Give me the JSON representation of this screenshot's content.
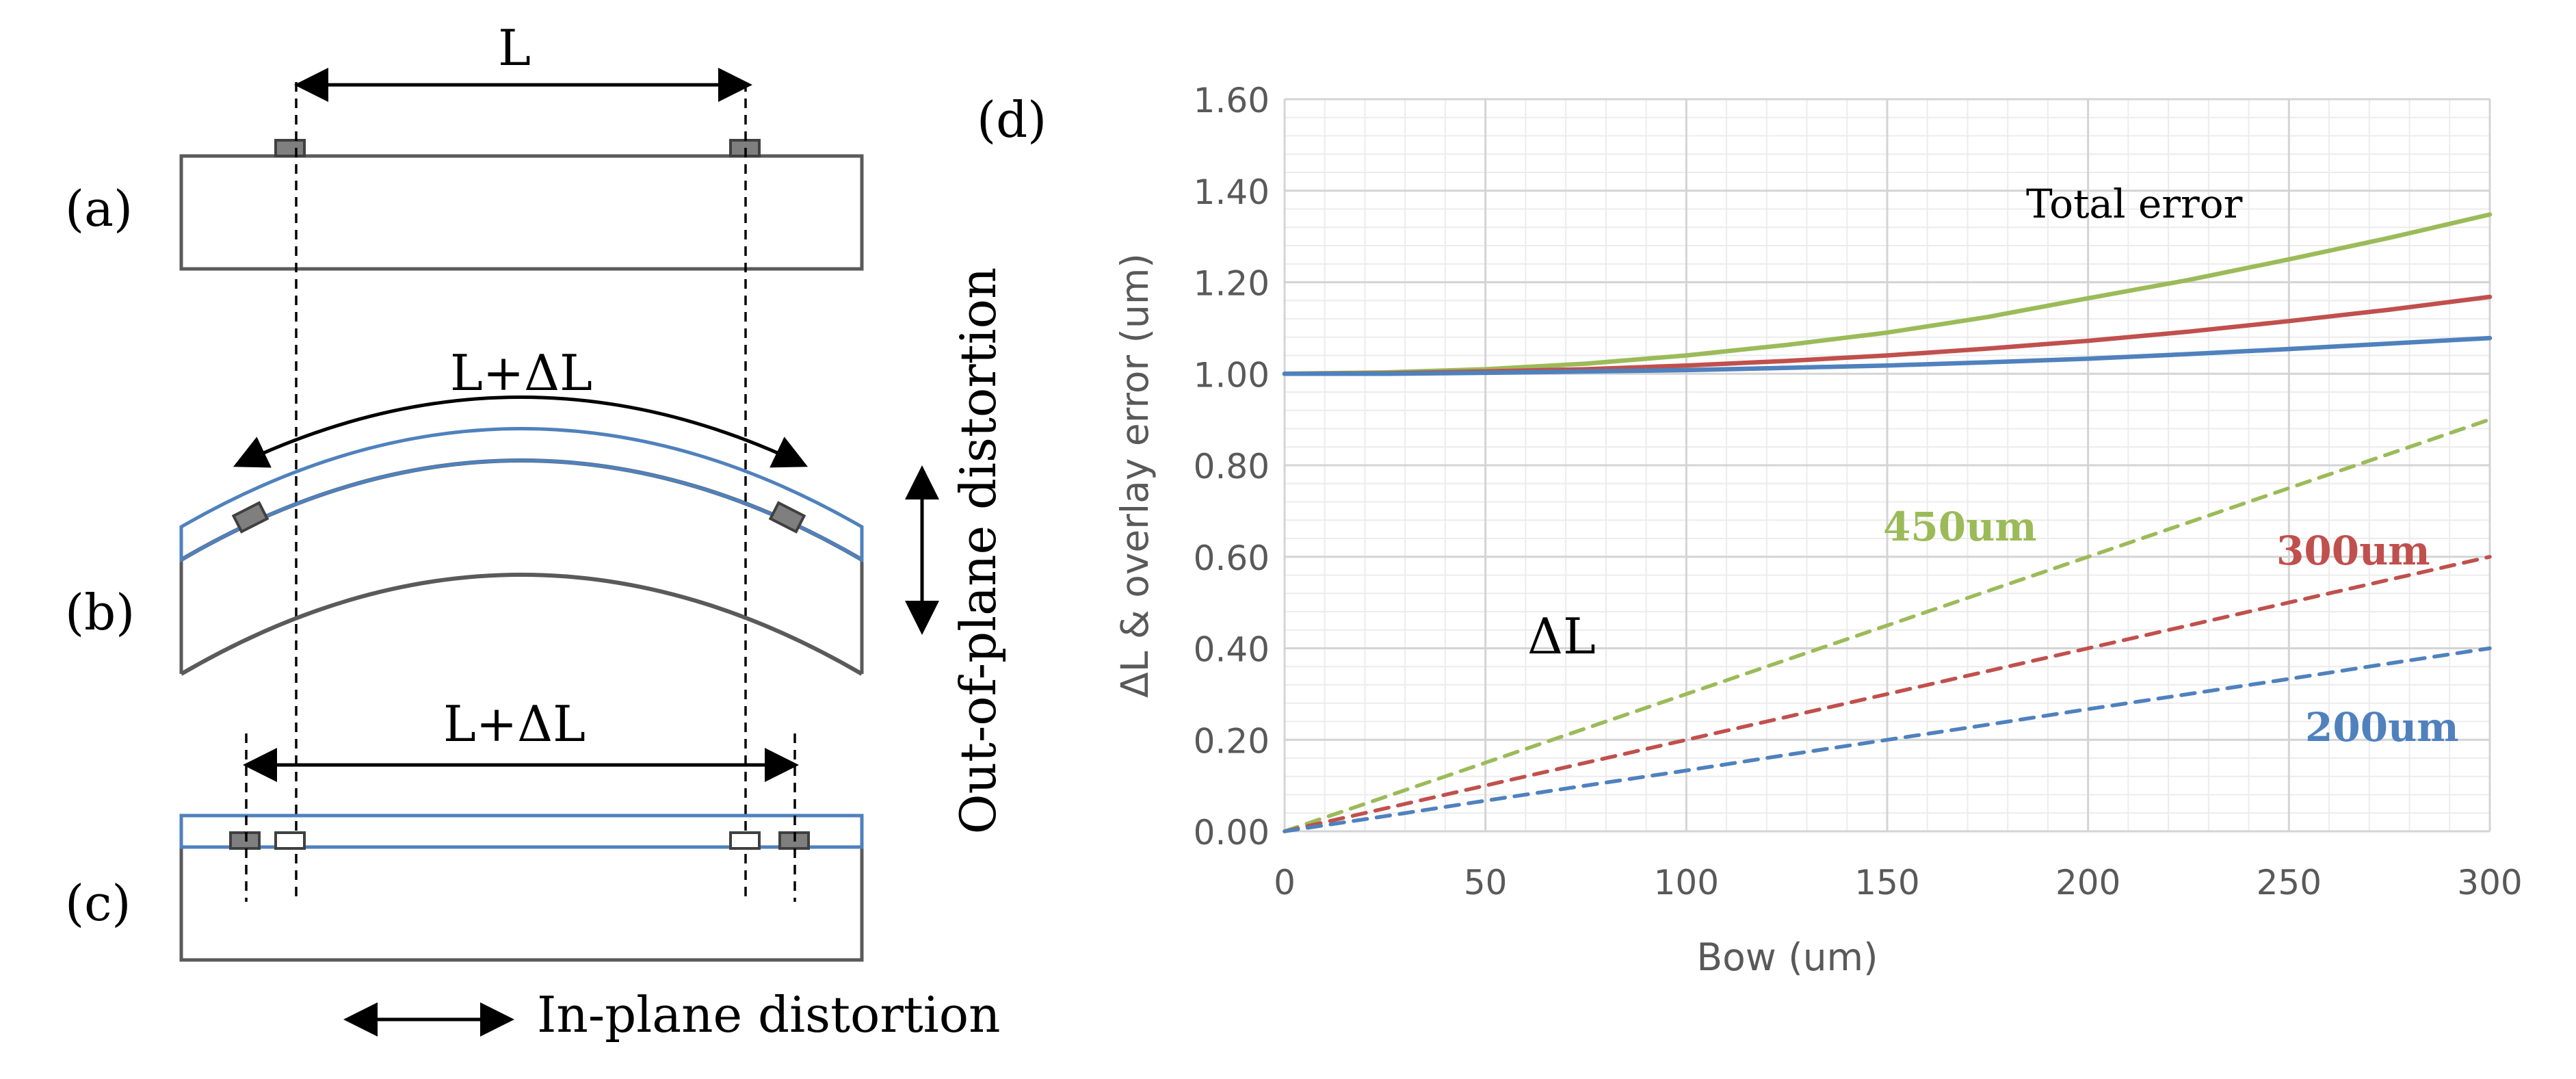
{
  "diagram": {
    "labels": {
      "panel_a": "(a)",
      "panel_b": "(b)",
      "panel_c": "(c)",
      "length_top": "L",
      "length_bent": "L+ΔL",
      "length_flat": "L+ΔL",
      "out_of_plane": "Out-of-plane distortion",
      "in_plane": "In-plane distortion"
    },
    "colors": {
      "outline": "#5a5a5a",
      "film": "#4f81bd",
      "marker_fill": "#7f7f7f"
    }
  },
  "chart_data": {
    "type": "line",
    "panel_label": "(d)",
    "xlabel": "Bow (um)",
    "ylabel": "ΔL & overlay error (um)",
    "xlim": [
      0,
      300
    ],
    "ylim": [
      0,
      1.6
    ],
    "x_ticks": [
      "0",
      "50",
      "100",
      "150",
      "200",
      "250",
      "300"
    ],
    "y_ticks": [
      "0.00",
      "0.20",
      "0.40",
      "0.60",
      "0.80",
      "1.00",
      "1.20",
      "1.40",
      "1.60"
    ],
    "grid": true,
    "annotations": {
      "total_error": "Total error",
      "delta_l": "ΔL",
      "label_450": "450um",
      "label_300": "300um",
      "label_200": "200um"
    },
    "x": [
      0,
      25,
      50,
      75,
      100,
      125,
      150,
      175,
      200,
      225,
      250,
      275,
      300
    ],
    "series": [
      {
        "name": "450um",
        "style": "solid",
        "color": "#9bbb59",
        "values": [
          1.0,
          1.003,
          1.01,
          1.022,
          1.04,
          1.063,
          1.09,
          1.124,
          1.165,
          1.205,
          1.25,
          1.297,
          1.348
        ]
      },
      {
        "name": "300um",
        "style": "solid",
        "color": "#c0504d",
        "values": [
          1.0,
          1.001,
          1.005,
          1.01,
          1.018,
          1.028,
          1.04,
          1.055,
          1.072,
          1.092,
          1.115,
          1.14,
          1.168
        ]
      },
      {
        "name": "200um",
        "style": "solid",
        "color": "#4f81bd",
        "values": [
          1.0,
          1.0,
          1.002,
          1.005,
          1.008,
          1.013,
          1.018,
          1.025,
          1.033,
          1.043,
          1.054,
          1.066,
          1.078
        ]
      },
      {
        "name": "450um",
        "style": "dashed",
        "color": "#9bbb59",
        "values": [
          0,
          0.075,
          0.15,
          0.225,
          0.3,
          0.375,
          0.45,
          0.525,
          0.6,
          0.675,
          0.75,
          0.825,
          0.9
        ]
      },
      {
        "name": "300um",
        "style": "dashed",
        "color": "#c0504d",
        "values": [
          0,
          0.05,
          0.1,
          0.15,
          0.2,
          0.25,
          0.3,
          0.35,
          0.4,
          0.45,
          0.5,
          0.55,
          0.6
        ]
      },
      {
        "name": "200um",
        "style": "dashed",
        "color": "#4f81bd",
        "values": [
          0,
          0.033,
          0.067,
          0.1,
          0.133,
          0.167,
          0.2,
          0.233,
          0.267,
          0.3,
          0.333,
          0.367,
          0.4
        ]
      }
    ]
  }
}
